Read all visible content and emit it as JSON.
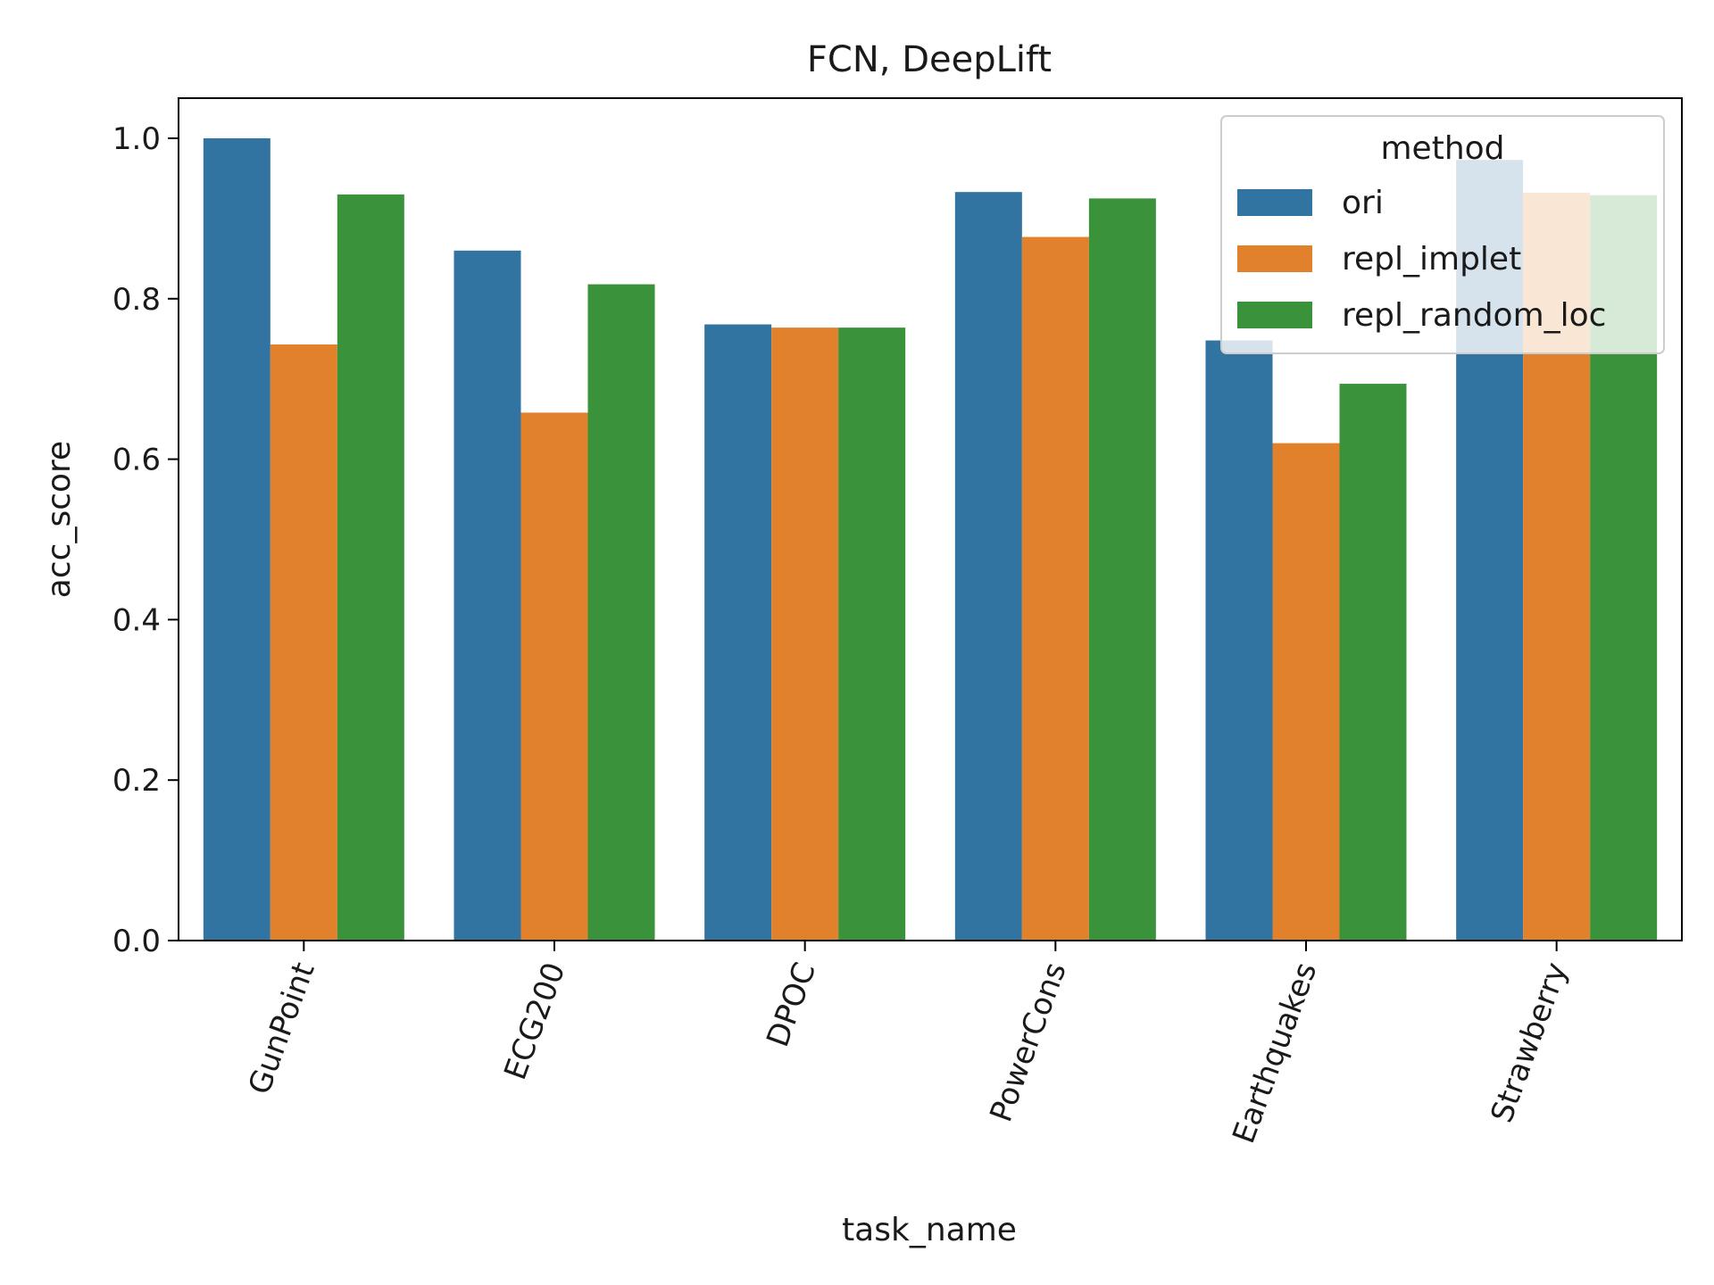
{
  "chart_data": {
    "type": "bar",
    "title": "FCN, DeepLift",
    "xlabel": "task_name",
    "ylabel": "acc_score",
    "categories": [
      "GunPoint",
      "ECG200",
      "DPOC",
      "PowerCons",
      "Earthquakes",
      "Strawberry"
    ],
    "series": [
      {
        "name": "ori",
        "color": "#3274a1",
        "values": [
          1.0,
          0.86,
          0.768,
          0.933,
          0.748,
          0.973
        ]
      },
      {
        "name": "repl_implet",
        "color": "#e1812c",
        "values": [
          0.743,
          0.658,
          0.764,
          0.877,
          0.62,
          0.932
        ]
      },
      {
        "name": "repl_random_loc",
        "color": "#3a923a",
        "values": [
          0.93,
          0.818,
          0.764,
          0.925,
          0.694,
          0.929
        ]
      }
    ],
    "ylim": [
      0,
      1.05
    ],
    "yticks": [
      "0.0",
      "0.2",
      "0.4",
      "0.6",
      "0.8",
      "1.0"
    ],
    "grid": false,
    "legend": {
      "title": "method",
      "position": "top-right"
    }
  }
}
